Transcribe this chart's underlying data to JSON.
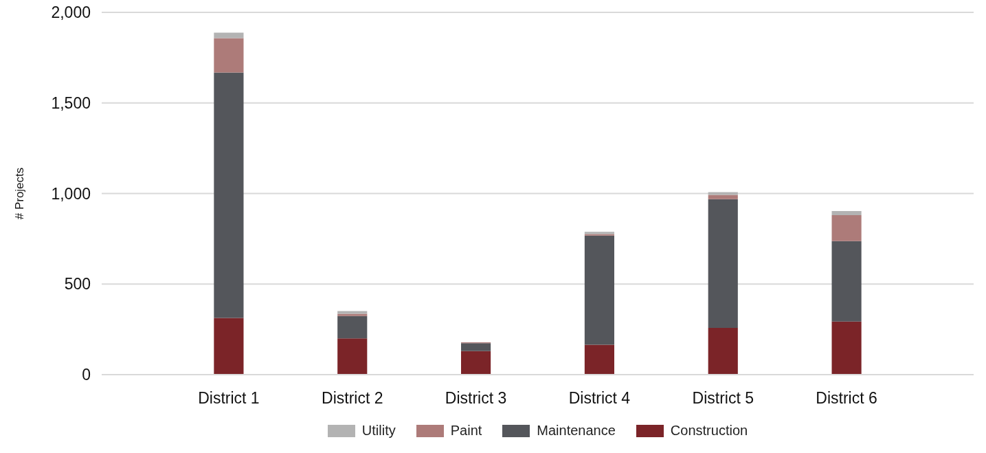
{
  "chart_data": {
    "type": "bar",
    "stacked": true,
    "ylabel": "# Projects",
    "categories": [
      "District 1",
      "District 2",
      "District 3",
      "District 4",
      "District 5",
      "District 6"
    ],
    "series": [
      {
        "name": "Construction",
        "color": "#7b2428",
        "values": [
          313,
          200,
          130,
          165,
          258,
          293
        ]
      },
      {
        "name": "Maintenance",
        "color": "#54565b",
        "values": [
          1355,
          124,
          44,
          603,
          711,
          444
        ]
      },
      {
        "name": "Paint",
        "color": "#ad7b79",
        "values": [
          190,
          12,
          4,
          8,
          23,
          143
        ]
      },
      {
        "name": "Utility",
        "color": "#b3b3b3",
        "values": [
          30,
          15,
          null,
          12,
          16,
          23
        ]
      }
    ],
    "ylim": [
      0,
      2000
    ],
    "yticks": [
      0,
      500,
      {
        "value": 1000,
        "label": "1,000"
      },
      {
        "value": 1500,
        "label": "1,500"
      },
      {
        "value": 2000,
        "label": "2,000"
      }
    ],
    "grid": "y",
    "legend": "bottom"
  }
}
